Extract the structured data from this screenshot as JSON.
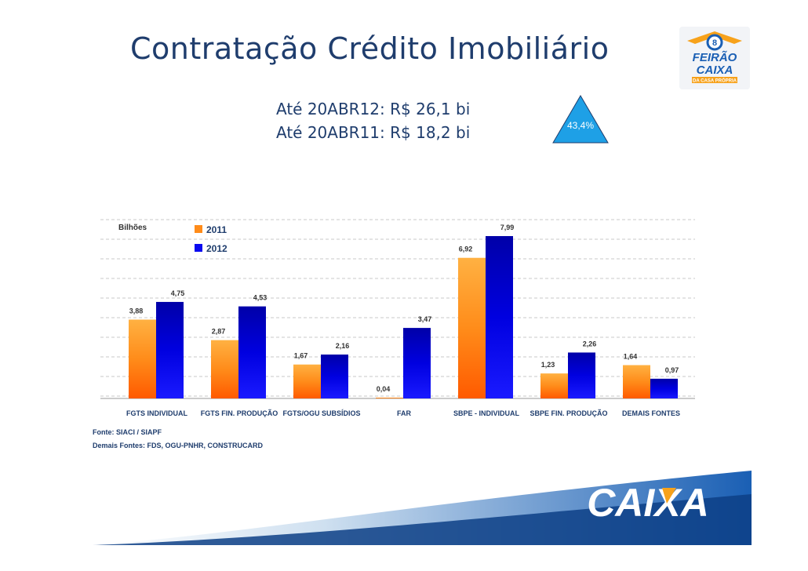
{
  "title": "Contratação Crédito Imobiliário",
  "summary": {
    "line1": "Até 20ABR12: R$ 26,1 bi",
    "line2": "Até 20ABR11: R$ 18,2 bi",
    "growth": "43,4%"
  },
  "logos": {
    "feirao_lines": [
      "FEIRÃO",
      "CAIXA",
      "DA CASA PRÓPRIA"
    ],
    "caixa": "CAIXA"
  },
  "sources": {
    "line1": "Fonte: SIACI / SIAPF",
    "line2": "Demais Fontes: FDS, OGU-PNHR, CONSTRUCARD"
  },
  "colors": {
    "title": "#1f3d6d",
    "series_2011": "#ff8c1a",
    "series_2012": "#0a0af0",
    "accent_blue": "#1ea0e6"
  },
  "chart_data": {
    "type": "bar",
    "unit_label": "Bilhões",
    "categories": [
      "FGTS INDIVIDUAL",
      "FGTS FIN. PRODUÇÃO",
      "FGTS/OGU SUBSÍDIOS",
      "FAR",
      "SBPE - INDIVIDUAL",
      "SBPE FIN. PRODUÇÃO",
      "DEMAIS FONTES"
    ],
    "series": [
      {
        "name": "2011",
        "values": [
          3.88,
          2.87,
          1.67,
          0.04,
          6.92,
          1.23,
          1.64
        ],
        "labels": [
          "3,88",
          "2,87",
          "1,67",
          "0,04",
          "6,92",
          "1,23",
          "1,64"
        ]
      },
      {
        "name": "2012",
        "values": [
          4.75,
          4.53,
          2.16,
          3.47,
          7.99,
          2.26,
          0.97
        ],
        "labels": [
          "4,75",
          "4,53",
          "2,16",
          "3,47",
          "7,99",
          "2,26",
          "0,97"
        ]
      }
    ],
    "ylim": [
      0,
      9
    ],
    "legend": "top-left",
    "grid": true
  }
}
